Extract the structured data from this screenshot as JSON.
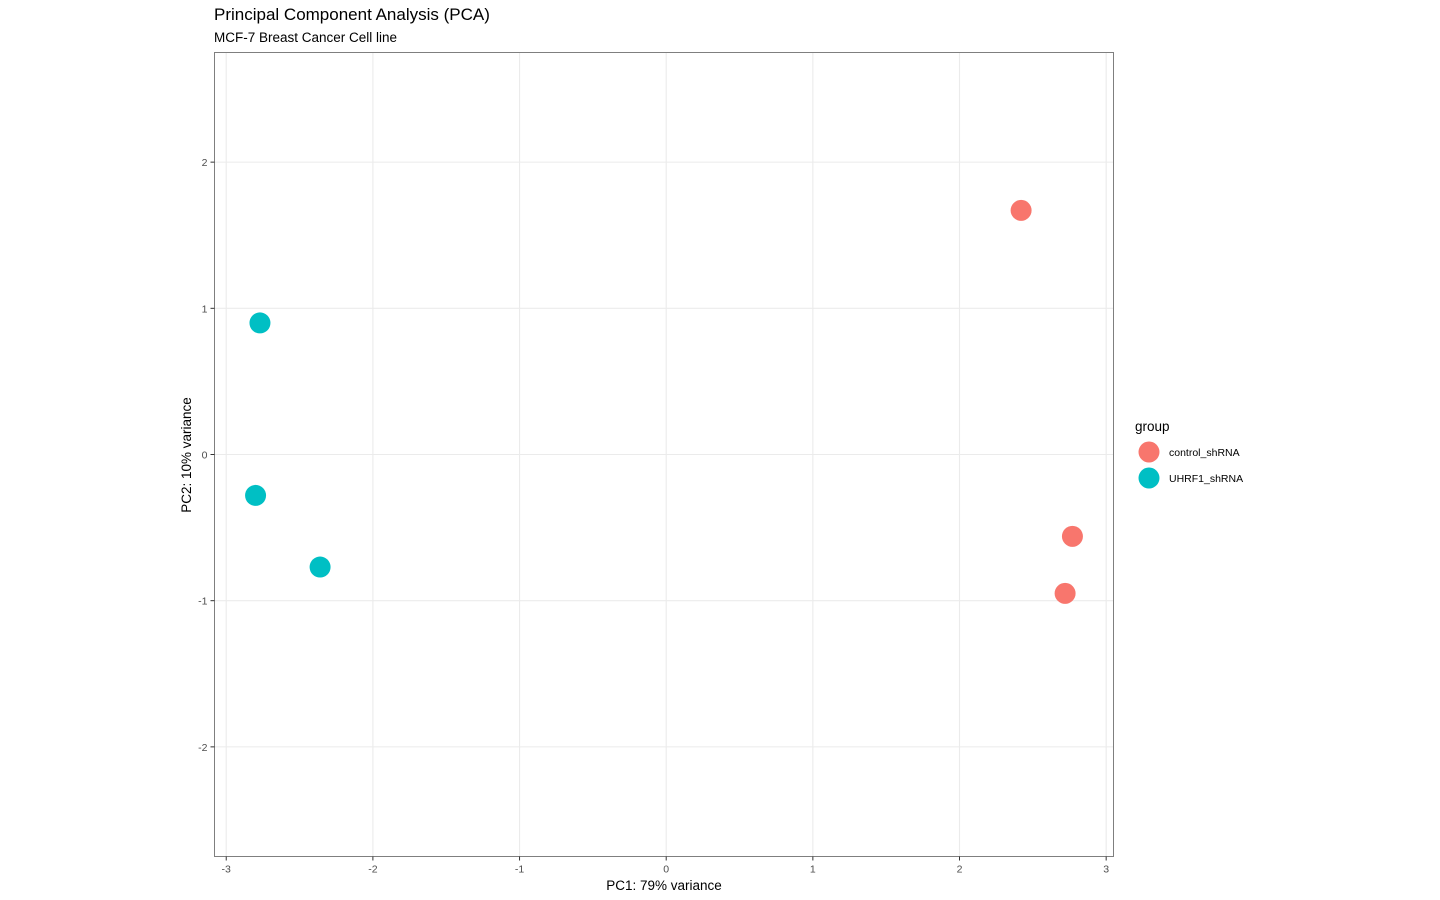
{
  "chart_data": {
    "type": "scatter",
    "title": "Principal Component Analysis (PCA)",
    "subtitle": "MCF-7 Breast Cancer Cell line",
    "xlabel": "PC1: 79% variance",
    "ylabel": "PC2: 10% variance",
    "xlim": [
      -3.08,
      3.05
    ],
    "ylim": [
      -2.75,
      2.75
    ],
    "x_ticks": [
      -3,
      -2,
      -1,
      0,
      1,
      2,
      3
    ],
    "y_ticks": [
      -2,
      -1,
      0,
      1,
      2
    ],
    "grid": true,
    "legend": {
      "title": "group",
      "placement": "right"
    },
    "series": [
      {
        "name": "control_shRNA",
        "color": "#F8766D",
        "points": [
          {
            "x": 2.42,
            "y": 1.67
          },
          {
            "x": 2.77,
            "y": -0.56
          },
          {
            "x": 2.72,
            "y": -0.95
          }
        ]
      },
      {
        "name": "UHRF1_shRNA",
        "color": "#00BFC4",
        "points": [
          {
            "x": -2.77,
            "y": 0.9
          },
          {
            "x": -2.8,
            "y": -0.28
          },
          {
            "x": -2.36,
            "y": -0.77
          }
        ]
      }
    ]
  }
}
